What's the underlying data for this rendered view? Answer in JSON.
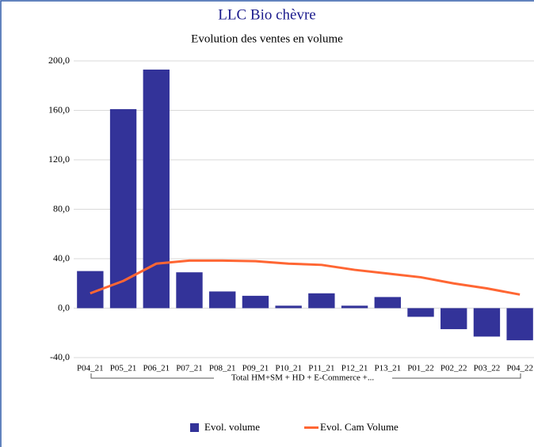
{
  "chart_data": {
    "type": "bar",
    "title": "LLC Bio chèvre",
    "subtitle": "Evolution des ventes en volume",
    "categories": [
      "P04_21",
      "P05_21",
      "P06_21",
      "P07_21",
      "P08_21",
      "P09_21",
      "P10_21",
      "P11_21",
      "P12_21",
      "P13_21",
      "P01_22",
      "P02_22",
      "P03_22",
      "P04_22"
    ],
    "group_label": "Total HM+SM + HD + E-Commerce +...",
    "series": [
      {
        "name": "Evol. volume",
        "type": "bar",
        "color": "#333399",
        "values": [
          30,
          161,
          193,
          29,
          13.5,
          10,
          2,
          12,
          2,
          9,
          -7,
          -17,
          -23,
          -26
        ]
      },
      {
        "name": "Evol. Cam Volume",
        "type": "line",
        "color": "#ff6633",
        "values": [
          12,
          22,
          36,
          38.5,
          38.5,
          38,
          36,
          35,
          31,
          28,
          25,
          20,
          16,
          11
        ]
      }
    ],
    "ylim": [
      -40,
      200
    ],
    "yticks": [
      {
        "value": -40,
        "label": "-40,0"
      },
      {
        "value": 0,
        "label": "0,0"
      },
      {
        "value": 40,
        "label": "40,0"
      },
      {
        "value": 80,
        "label": "80,0"
      },
      {
        "value": 120,
        "label": "120,0"
      },
      {
        "value": 160,
        "label": "160,0"
      },
      {
        "value": 200,
        "label": "200,0"
      }
    ],
    "grid": true
  }
}
